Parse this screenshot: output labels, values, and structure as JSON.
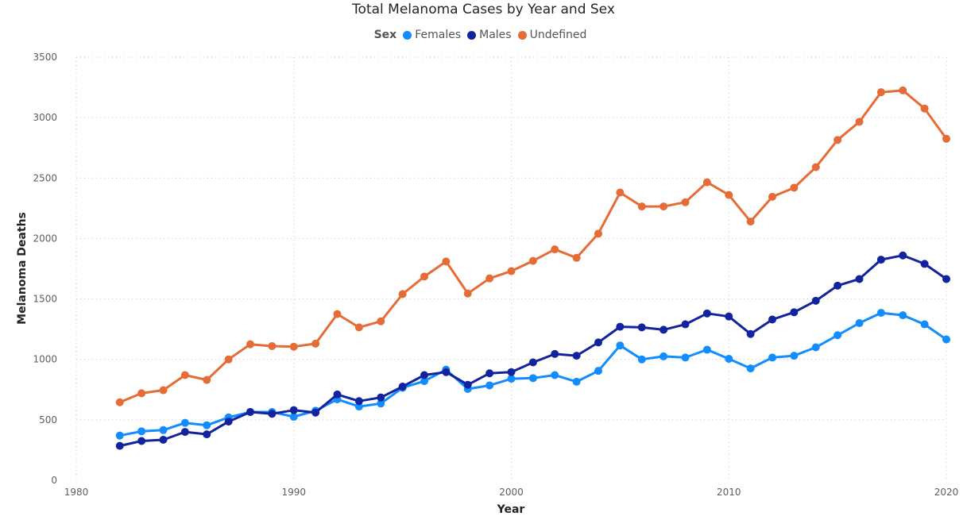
{
  "chart_data": {
    "type": "line",
    "title": "Total Melanoma Cases by Year and Sex",
    "xlabel": "Year",
    "ylabel": "Melanoma Deaths",
    "legend": {
      "title": "Sex",
      "position": "top-center"
    },
    "xlim": [
      1980,
      2020
    ],
    "ylim": [
      0,
      3500
    ],
    "x_ticks": [
      1980,
      1990,
      2000,
      2010,
      2020
    ],
    "y_ticks": [
      0,
      500,
      1000,
      1500,
      2000,
      2500,
      3000,
      3500
    ],
    "grid": true,
    "x": [
      1982,
      1983,
      1984,
      1985,
      1986,
      1987,
      1988,
      1989,
      1990,
      1991,
      1992,
      1993,
      1994,
      1995,
      1996,
      1997,
      1998,
      1999,
      2000,
      2001,
      2002,
      2003,
      2004,
      2005,
      2006,
      2007,
      2008,
      2009,
      2010,
      2011,
      2012,
      2013,
      2014,
      2015,
      2016,
      2017,
      2018,
      2019,
      2020
    ],
    "series": [
      {
        "name": "Females",
        "color": "#118dff",
        "values": [
          370,
          405,
          415,
          475,
          455,
          520,
          565,
          565,
          525,
          575,
          670,
          610,
          635,
          765,
          820,
          915,
          755,
          785,
          840,
          845,
          870,
          815,
          905,
          1115,
          1000,
          1025,
          1015,
          1080,
          1005,
          925,
          1015,
          1030,
          1100,
          1200,
          1300,
          1385,
          1365,
          1290,
          1165
        ]
      },
      {
        "name": "Males",
        "color": "#12239e",
        "values": [
          285,
          325,
          335,
          400,
          380,
          485,
          565,
          550,
          580,
          560,
          710,
          655,
          685,
          775,
          870,
          895,
          790,
          885,
          895,
          975,
          1045,
          1030,
          1140,
          1270,
          1265,
          1245,
          1290,
          1380,
          1355,
          1210,
          1330,
          1390,
          1485,
          1610,
          1665,
          1825,
          1860,
          1790,
          1665
        ]
      },
      {
        "name": "Undefined",
        "color": "#e66c37",
        "values": [
          645,
          720,
          745,
          870,
          830,
          1000,
          1125,
          1110,
          1105,
          1130,
          1375,
          1265,
          1315,
          1540,
          1685,
          1810,
          1545,
          1670,
          1730,
          1815,
          1910,
          1840,
          2040,
          2380,
          2265,
          2265,
          2300,
          2465,
          2360,
          2140,
          2345,
          2420,
          2590,
          2815,
          2965,
          3210,
          3225,
          3075,
          2825
        ]
      }
    ]
  }
}
